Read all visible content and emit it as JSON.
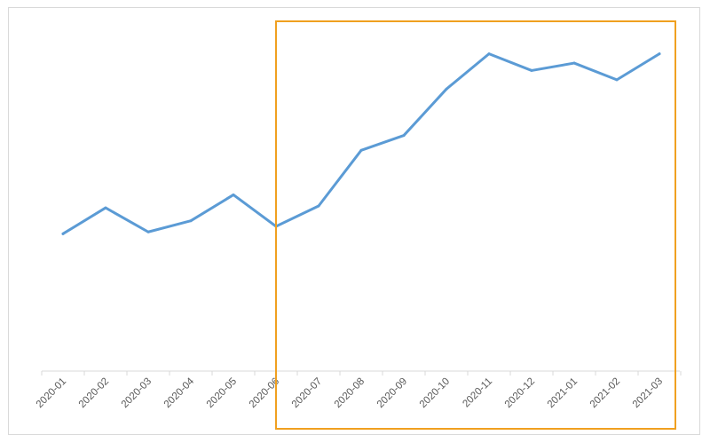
{
  "chart_data": {
    "type": "line",
    "categories": [
      "2020-01",
      "2020-02",
      "2020-03",
      "2020-04",
      "2020-05",
      "2020-06",
      "2020-07",
      "2020-08",
      "2020-09",
      "2020-10",
      "2020-11",
      "2020-12",
      "2021-01",
      "2021-02",
      "2021-03"
    ],
    "series": [
      {
        "values": [
          37,
          44,
          37.5,
          40.5,
          47.5,
          39,
          44.5,
          59.5,
          63.5,
          76,
          85.5,
          81,
          83,
          78.5,
          85.5
        ],
        "color": "#5b9bd5"
      }
    ],
    "title": "",
    "xlabel": "",
    "ylabel": "",
    "ylim": [
      0,
      100
    ],
    "y_axis_visible": false,
    "grid": false,
    "legend": "none"
  },
  "highlight": {
    "color": "#f0a020",
    "from_category": "2020-06",
    "to_category": "2021-03"
  }
}
